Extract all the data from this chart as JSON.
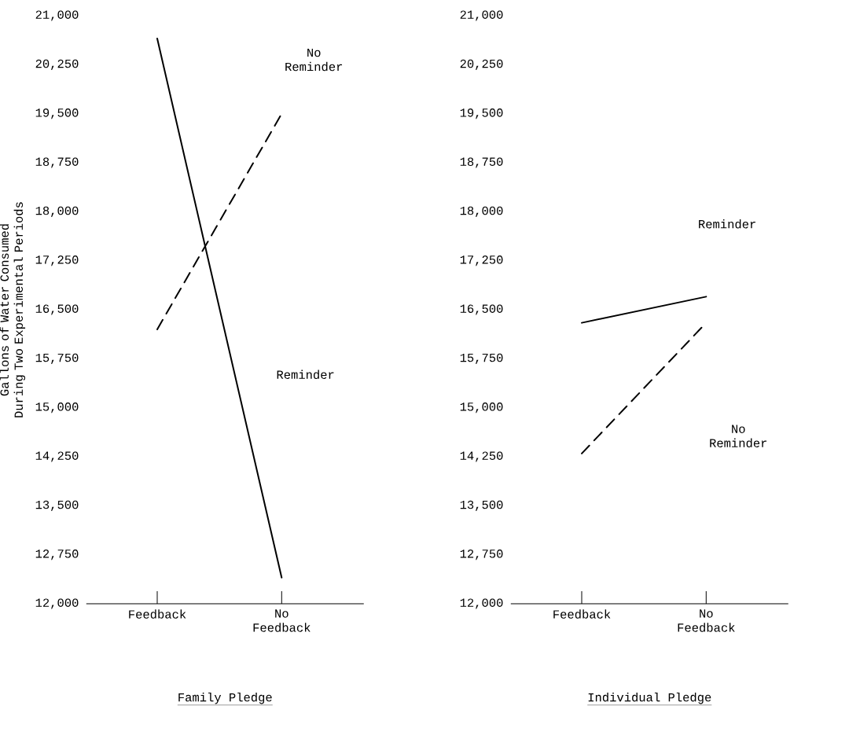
{
  "chart_data": [
    {
      "type": "line",
      "title": "Family Pledge",
      "ylabel": "Gallons of Water Consumed During Two Experimental Periods",
      "categories": [
        "Feedback",
        "No Feedback"
      ],
      "series": [
        {
          "name": "Reminder",
          "color": "#000000",
          "line_style": "solid",
          "values": [
            20650,
            12400
          ]
        },
        {
          "name": "No Reminder",
          "color": "#000000",
          "line_style": "dashed",
          "values": [
            16200,
            19500
          ]
        }
      ],
      "ylim": [
        12000,
        21000
      ],
      "yticks": [
        {
          "value": 12000,
          "label": "12,000"
        },
        {
          "value": 12750,
          "label": "12,750"
        },
        {
          "value": 13500,
          "label": "13,500"
        },
        {
          "value": 14250,
          "label": "14,250"
        },
        {
          "value": 15000,
          "label": "15,000"
        },
        {
          "value": 15750,
          "label": "15,750"
        },
        {
          "value": 16500,
          "label": "16,500"
        },
        {
          "value": 17250,
          "label": "17,250"
        },
        {
          "value": 18000,
          "label": "18,000"
        },
        {
          "value": 18750,
          "label": "18,750"
        },
        {
          "value": 19500,
          "label": "19,500"
        },
        {
          "value": 20250,
          "label": "20,250"
        },
        {
          "value": 21000,
          "label": "21,000"
        }
      ],
      "grid": false,
      "legend": false
    },
    {
      "type": "line",
      "title": "Individual Pledge",
      "categories": [
        "Feedback",
        "No Feedback"
      ],
      "series": [
        {
          "name": "Reminder",
          "color": "#000000",
          "line_style": "solid",
          "values": [
            16300,
            16700
          ]
        },
        {
          "name": "No Reminder",
          "color": "#000000",
          "line_style": "dashed",
          "values": [
            14300,
            16300
          ]
        }
      ],
      "ylim": [
        12000,
        21000
      ],
      "yticks": [
        {
          "value": 12000,
          "label": "12,000"
        },
        {
          "value": 12750,
          "label": "12,750"
        },
        {
          "value": 13500,
          "label": "13,500"
        },
        {
          "value": 14250,
          "label": "14,250"
        },
        {
          "value": 15000,
          "label": "15,000"
        },
        {
          "value": 15750,
          "label": "15,750"
        },
        {
          "value": 16500,
          "label": "16,500"
        },
        {
          "value": 17250,
          "label": "17,250"
        },
        {
          "value": 18000,
          "label": "18,000"
        },
        {
          "value": 18750,
          "label": "18,750"
        },
        {
          "value": 19500,
          "label": "19,500"
        },
        {
          "value": 20250,
          "label": "20,250"
        },
        {
          "value": 21000,
          "label": "21,000"
        }
      ],
      "grid": false,
      "legend": false
    }
  ]
}
